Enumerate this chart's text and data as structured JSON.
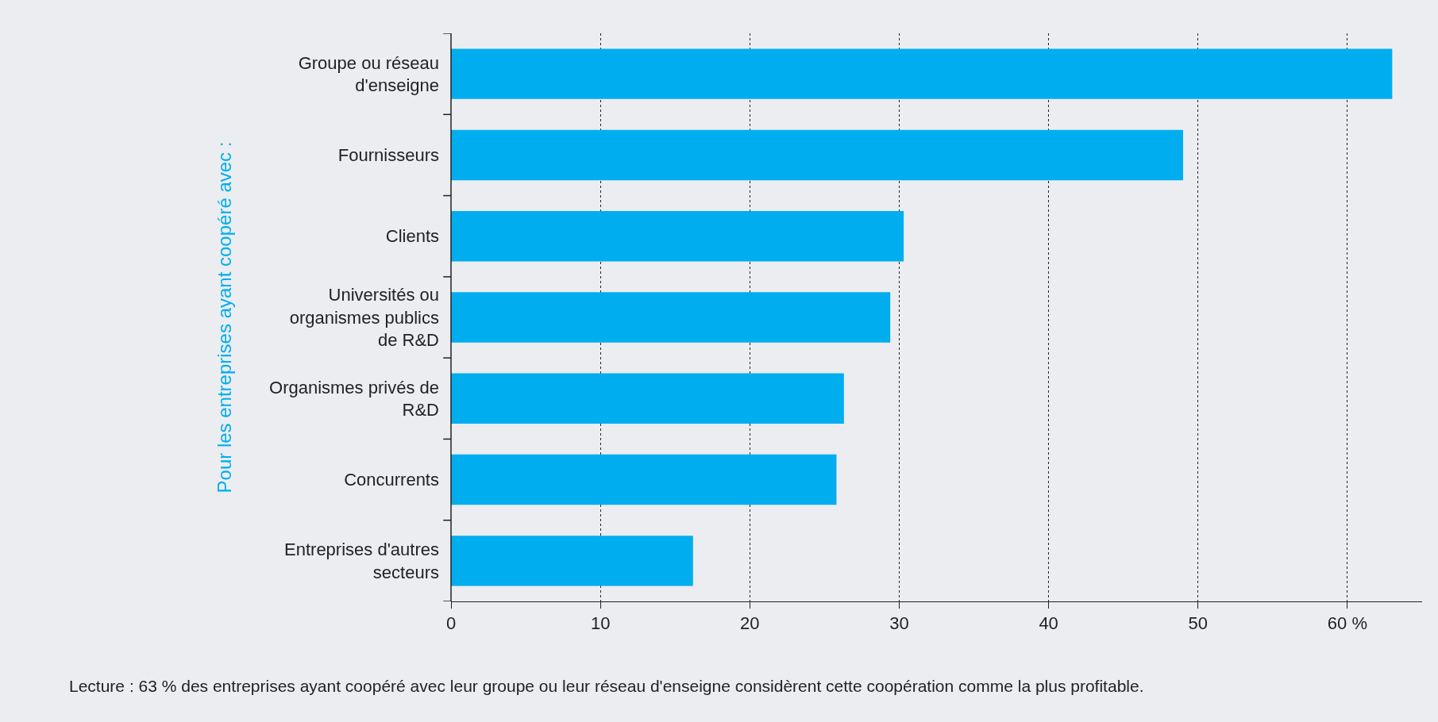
{
  "chart_data": {
    "type": "bar",
    "orientation": "horizontal",
    "ylabel": "Pour les entreprises ayant coopéré avec :",
    "categories": [
      "Groupe ou réseau d'enseigne",
      "Fournisseurs",
      "Clients",
      "Universités ou organismes publics de R&D",
      "Organismes privés de R&D",
      "Concurrents",
      "Entreprises d'autres secteurs"
    ],
    "values": [
      63,
      49,
      30.3,
      29.4,
      26.3,
      25.8,
      16.2
    ],
    "color": "#00aeef",
    "xlim": [
      0,
      65
    ],
    "xticks": [
      0,
      10,
      20,
      30,
      40,
      50,
      {
        "value": 60,
        "label": "60 %"
      }
    ],
    "grid": "x",
    "legend": false,
    "annotations": [
      "Lecture : 63 % des entreprises ayant coopéré avec leur groupe ou leur réseau d'enseigne considèrent cette coopération comme la plus profitable."
    ]
  }
}
